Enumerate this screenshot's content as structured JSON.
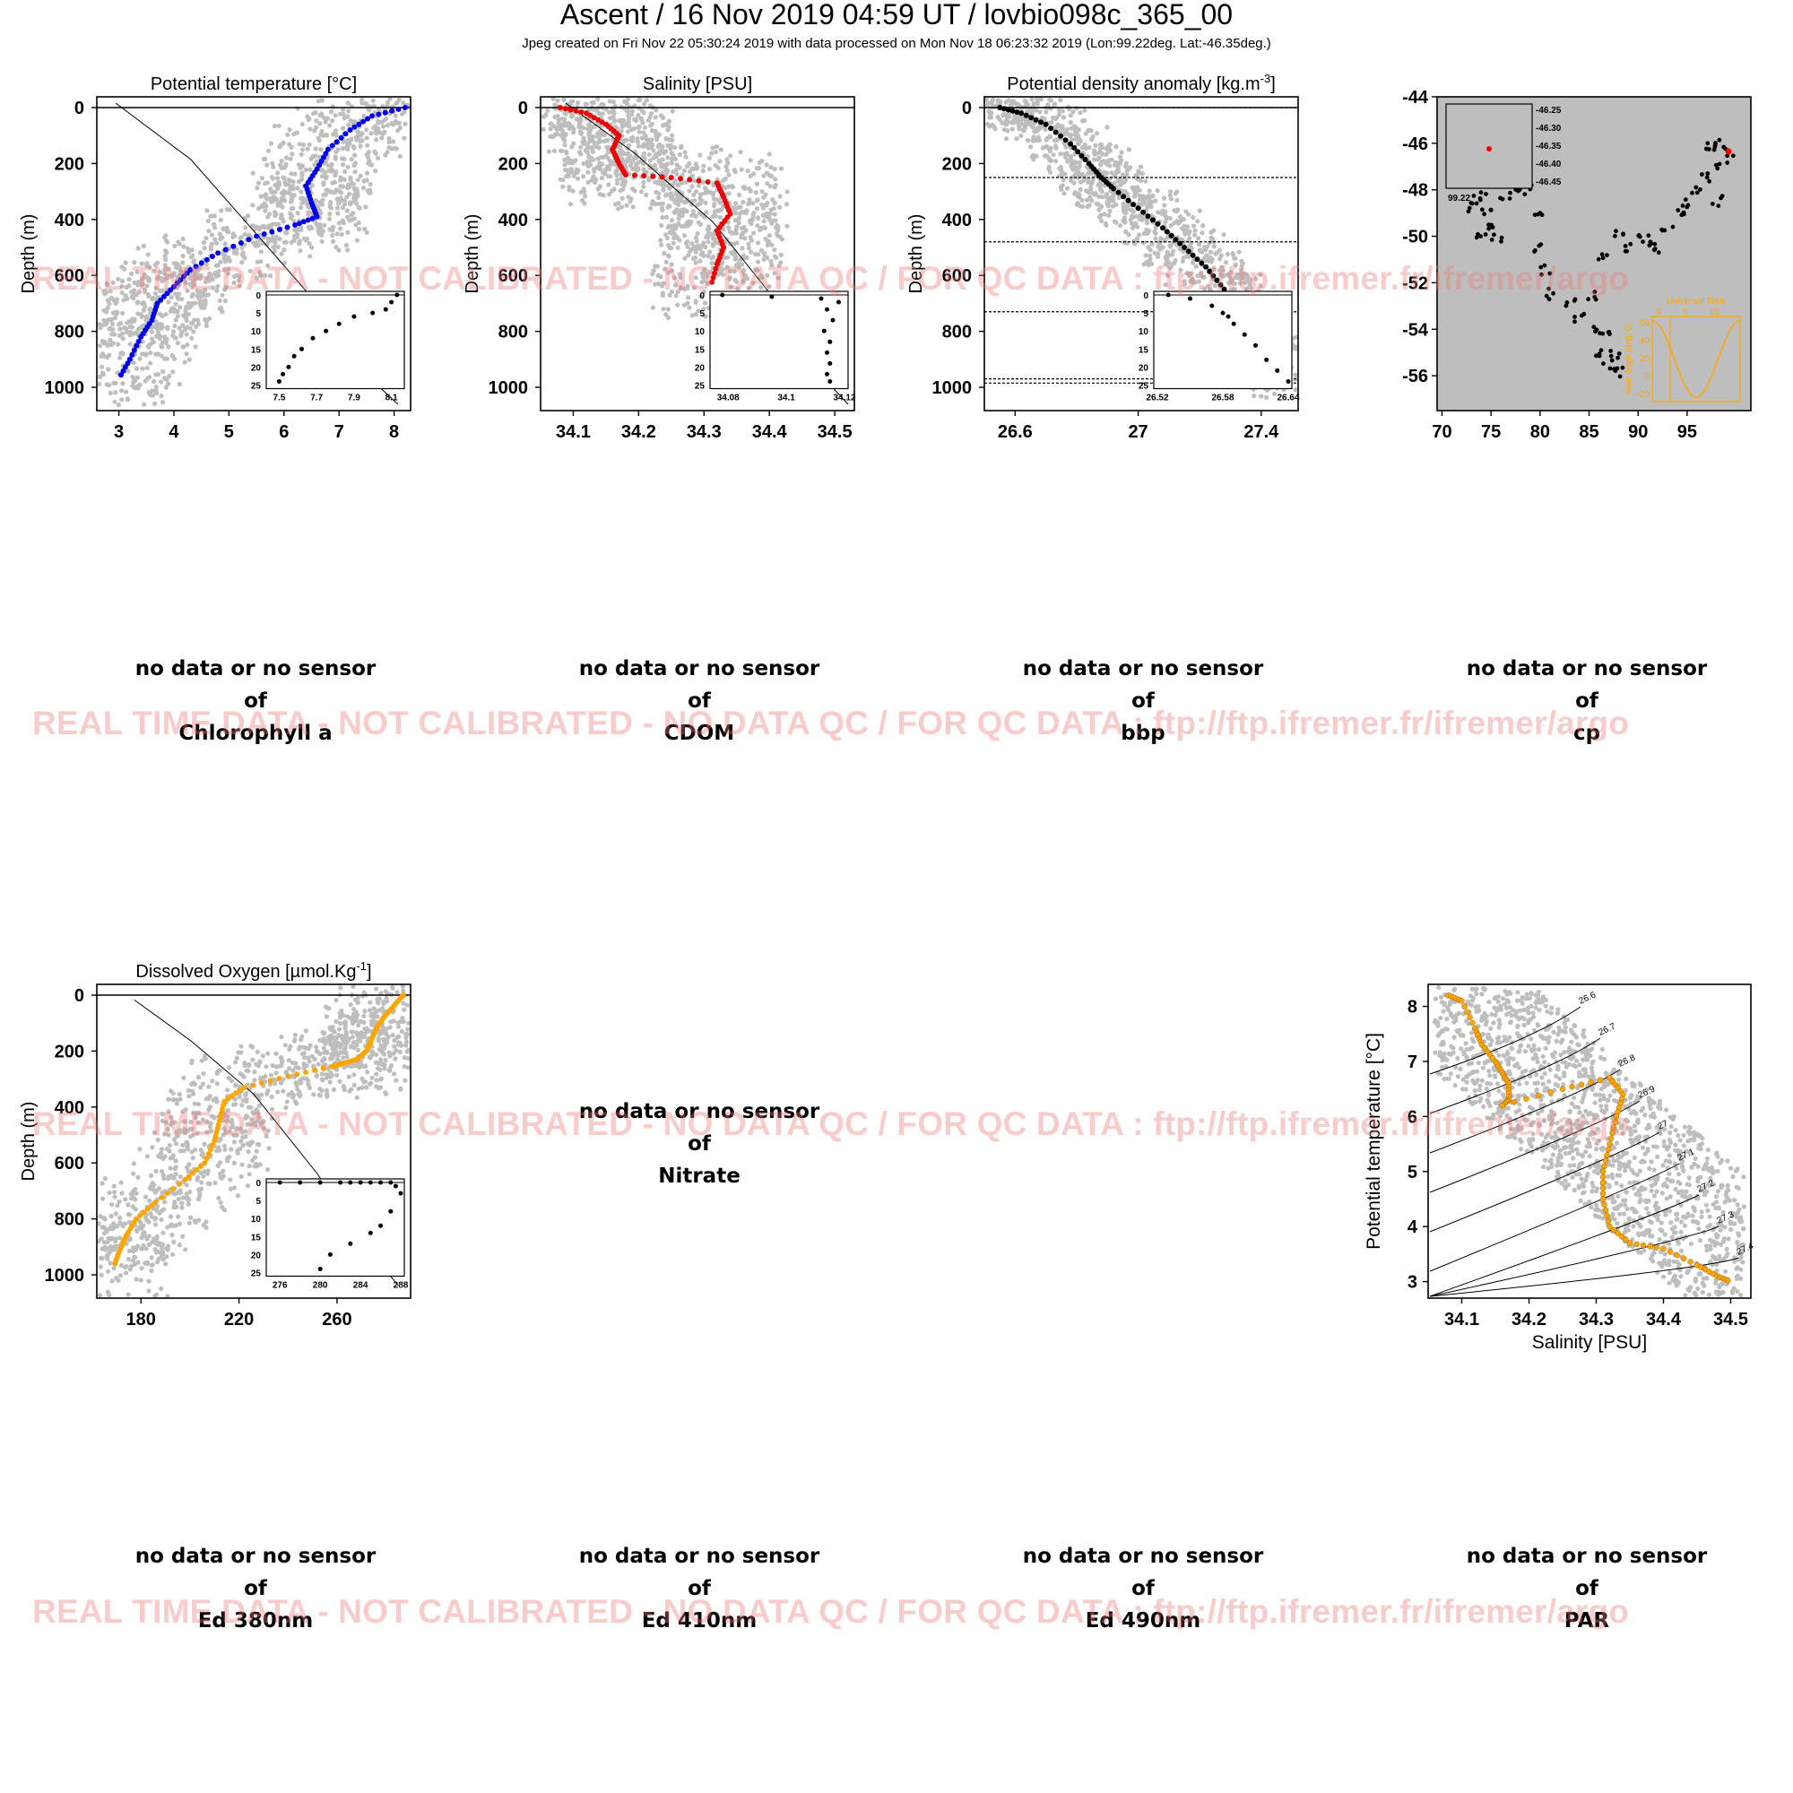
{
  "header": {
    "title": "Ascent / 16 Nov 2019 04:59 UT /  lovbio098c_365_00",
    "subtitle": "Jpeg created on Fri Nov 22 05:30:24 2019 with data processed on Mon Nov 18 06:23:32 2019 (Lon:99.22deg. Lat:-46.35deg.)"
  },
  "watermark": "REAL TIME DATA - NOT CALIBRATED - NO DATA QC   /  FOR QC DATA : ftp://ftp.ifremer.fr/ifremer/argo",
  "colors": {
    "temperature": "#0000ee",
    "salinity": "#ee0000",
    "density": "#000000",
    "oxygen": "#ffa500",
    "background_cloud": "#bebebe",
    "watermark": "#f07878"
  },
  "no_data": {
    "line1": "no data or no sensor",
    "line2": "of",
    "chl": "Chlorophyll a",
    "cdom": "CDOM",
    "bbp": "bbp",
    "cp": "cp",
    "nitrate": "Nitrate",
    "ed380": "Ed 380nm",
    "ed410": "Ed 410nm",
    "ed490": "Ed 490nm",
    "par": "PAR"
  },
  "chart_data": [
    {
      "id": "temperature",
      "type": "scatter",
      "title": "Potential temperature [°C]",
      "ylabel": "Depth (m)",
      "xlim": [
        2.6,
        8.3
      ],
      "ylim": [
        1000,
        0
      ],
      "xticks": [
        3,
        4,
        5,
        6,
        7,
        8
      ],
      "yticks": [
        0,
        200,
        400,
        600,
        800,
        1000
      ],
      "x": [
        8.2,
        7.6,
        7.2,
        6.8,
        6.6,
        6.4,
        6.5,
        6.6,
        6.2,
        5.5,
        4.8,
        4.3,
        4.0,
        3.7,
        3.6,
        3.4,
        3.2,
        3.0
      ],
      "y": [
        0,
        30,
        80,
        150,
        220,
        280,
        340,
        390,
        420,
        460,
        520,
        580,
        640,
        700,
        760,
        820,
        900,
        970
      ],
      "inset": {
        "xlim": [
          7.45,
          8.15
        ],
        "ylim": [
          25,
          0
        ],
        "xticks": [
          7.5,
          7.7,
          7.9,
          8.1
        ],
        "yticks": [
          0,
          5,
          10,
          15,
          20,
          25
        ],
        "x": [
          8.13,
          8.1,
          8.07,
          8.0,
          7.9,
          7.82,
          7.75,
          7.68,
          7.62,
          7.58,
          7.55,
          7.52,
          7.5
        ],
        "y": [
          0,
          2,
          4,
          5,
          6,
          8,
          10,
          12,
          15,
          17,
          20,
          22,
          24
        ]
      }
    },
    {
      "id": "salinity",
      "type": "scatter",
      "title": "Salinity [PSU]",
      "ylabel": "Depth (m)",
      "xlim": [
        34.05,
        34.53
      ],
      "ylim": [
        1000,
        0
      ],
      "xticks": [
        34.1,
        34.2,
        34.3,
        34.4,
        34.5
      ],
      "yticks": [
        0,
        200,
        400,
        600,
        800,
        1000
      ],
      "x": [
        34.08,
        34.12,
        34.15,
        34.17,
        34.16,
        34.17,
        34.18,
        34.25,
        34.32,
        34.33,
        34.34,
        34.32,
        34.33,
        34.32,
        34.31
      ],
      "y": [
        0,
        20,
        60,
        100,
        150,
        200,
        240,
        250,
        270,
        320,
        380,
        440,
        500,
        560,
        640
      ],
      "inset": {
        "xlim": [
          34.075,
          34.12
        ],
        "ylim": [
          25,
          0
        ],
        "xticks": [
          34.08,
          34.1,
          34.12
        ],
        "yticks": [
          0,
          5,
          10,
          15,
          20,
          25
        ],
        "x": [
          34.078,
          34.095,
          34.112,
          34.118,
          34.114,
          34.116,
          34.113,
          34.115,
          34.114,
          34.115,
          34.114,
          34.115
        ],
        "y": [
          0,
          0.5,
          1,
          2,
          4,
          7,
          10,
          13,
          16,
          19,
          22,
          24
        ]
      }
    },
    {
      "id": "density",
      "type": "scatter",
      "title": "Potential density anomaly [kg.m",
      "title_sup": "-3",
      "title_end": "]",
      "ylabel": "Depth (m)",
      "xlim": [
        26.5,
        27.52
      ],
      "ylim": [
        1000,
        0
      ],
      "xticks": [
        26.6,
        27.0,
        27.4
      ],
      "yticks": [
        0,
        200,
        400,
        600,
        800,
        1000
      ],
      "x": [
        26.55,
        26.62,
        26.7,
        26.78,
        26.84,
        26.88,
        26.92,
        27.0,
        27.08,
        27.15,
        27.22,
        27.28,
        27.34,
        27.4,
        27.45,
        27.5
      ],
      "y": [
        0,
        20,
        60,
        130,
        200,
        250,
        290,
        360,
        430,
        500,
        570,
        650,
        740,
        830,
        900,
        980
      ],
      "hlines": [
        0,
        250,
        480,
        730,
        970,
        985
      ],
      "inset": {
        "xlim": [
          26.52,
          26.64
        ],
        "ylim": [
          25,
          0
        ],
        "xticks": [
          26.52,
          26.58,
          26.64
        ],
        "yticks": [
          0,
          5,
          10,
          15,
          20,
          25
        ],
        "x": [
          26.53,
          26.55,
          26.57,
          26.58,
          26.585,
          26.59,
          26.6,
          26.61,
          26.62,
          26.63,
          26.64
        ],
        "y": [
          0,
          1,
          3,
          5,
          6,
          8,
          11,
          14,
          18,
          21,
          24
        ]
      }
    },
    {
      "id": "trajectory",
      "type": "scatter",
      "xlim": [
        69.5,
        101.5
      ],
      "ylim": [
        -57.5,
        -44
      ],
      "xticks": [
        70,
        75,
        80,
        85,
        90,
        95
      ],
      "yticks": [
        -44,
        -46,
        -48,
        -50,
        -52,
        -54,
        -56
      ],
      "x": [
        74,
        73.5,
        74.5,
        75,
        73,
        74,
        75.5,
        76.5,
        78,
        79,
        80,
        79.5,
        80.5,
        81,
        83,
        84,
        85.5,
        86,
        87,
        88,
        87.5,
        86.5,
        85.5,
        86.5,
        88,
        89,
        90,
        91,
        92,
        93,
        94.5,
        95,
        96,
        97,
        98,
        98.5,
        97.5,
        98.3,
        99.2
      ],
      "y": [
        -48,
        -48.5,
        -49,
        -49.5,
        -48.8,
        -49.8,
        -50,
        -48.2,
        -47.8,
        -48,
        -49,
        -50.5,
        -51.5,
        -52.5,
        -52.8,
        -53.5,
        -54,
        -55,
        -55.5,
        -55.8,
        -55,
        -54,
        -52.5,
        -51,
        -49.8,
        -50.5,
        -50,
        -50.2,
        -50.5,
        -49.8,
        -49,
        -48.5,
        -48,
        -47.5,
        -48.5,
        -47,
        -46.2,
        -46.1,
        -46.35
      ],
      "current": {
        "x": 99.22,
        "y": -46.35
      },
      "inset_labels": [
        "-46.25",
        "-46.30",
        "-46.35",
        "-46.40",
        "-46.45"
      ],
      "inset_xlabel": "99.22",
      "sun_inset": {
        "title": "Universal Time",
        "xticks": [
          "0",
          "5",
          "15"
        ],
        "ylabel": "Solar Angle (deg. C)",
        "yticks": [
          "60",
          "40",
          "20",
          "0",
          "-20"
        ]
      }
    },
    {
      "id": "oxygen",
      "type": "scatter",
      "title": "Dissolved Oxygen [µmol.Kg",
      "title_sup": "-1",
      "title_end": "]",
      "ylabel": "Depth (m)",
      "xlim": [
        162,
        290
      ],
      "ylim": [
        1000,
        0
      ],
      "xticks": [
        180,
        220,
        260
      ],
      "yticks": [
        0,
        200,
        400,
        600,
        800,
        1000
      ],
      "x": [
        287,
        283,
        279,
        276,
        274,
        272,
        268,
        262,
        258,
        240,
        222,
        214,
        212,
        210,
        206,
        198,
        186,
        178,
        174,
        171,
        169
      ],
      "y": [
        0,
        40,
        80,
        120,
        160,
        200,
        230,
        245,
        255,
        290,
        330,
        380,
        450,
        520,
        600,
        660,
        740,
        800,
        860,
        920,
        970
      ],
      "inset": {
        "xlim": [
          275,
          288
        ],
        "ylim": [
          25,
          0
        ],
        "xticks": [
          276,
          280,
          284,
          288
        ],
        "yticks": [
          0,
          5,
          10,
          15,
          20,
          25
        ],
        "x": [
          276,
          278,
          280,
          282,
          283,
          284,
          285,
          286,
          287,
          287.5,
          288,
          280,
          281,
          283,
          285,
          286,
          287
        ],
        "y": [
          0,
          0,
          0,
          0,
          0,
          0,
          0,
          0,
          0,
          1,
          3,
          24,
          20,
          17,
          14,
          12,
          8
        ]
      }
    },
    {
      "id": "ts_diagram",
      "type": "scatter",
      "xlabel": "Salinity [PSU]",
      "ylabel": "Potential temperature [°C]",
      "xlim": [
        34.05,
        34.53
      ],
      "ylim": [
        2.7,
        8.4
      ],
      "xticks": [
        34.1,
        34.2,
        34.3,
        34.4,
        34.5
      ],
      "yticks": [
        3,
        4,
        5,
        6,
        7,
        8
      ],
      "isopycnals": [
        "26.6",
        "26.7",
        "26.8",
        "26.9",
        "27",
        "27.1",
        "27.2",
        "27.3",
        "27.4"
      ],
      "x": [
        34.08,
        34.1,
        34.12,
        34.13,
        34.15,
        34.16,
        34.17,
        34.17,
        34.16,
        34.25,
        34.32,
        34.34,
        34.33,
        34.32,
        34.31,
        34.31,
        34.32,
        34.35,
        34.4,
        34.45,
        34.48,
        34.5
      ],
      "y": [
        8.2,
        8.1,
        7.6,
        7.3,
        7.0,
        6.8,
        6.6,
        6.3,
        6.2,
        6.5,
        6.7,
        6.4,
        6.0,
        5.5,
        5.0,
        4.5,
        4.0,
        3.7,
        3.6,
        3.3,
        3.1,
        3.0
      ]
    }
  ]
}
